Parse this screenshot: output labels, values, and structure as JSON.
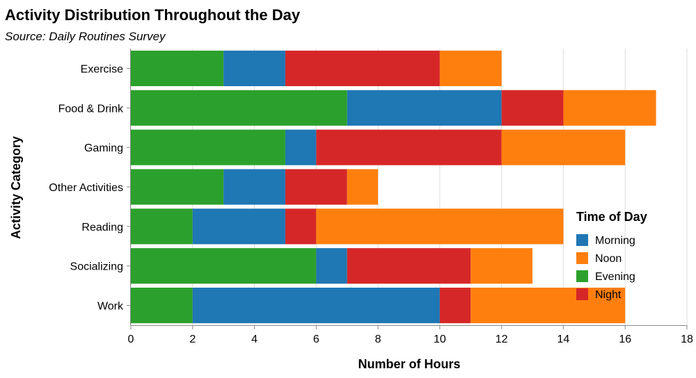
{
  "chart_data": {
    "type": "bar",
    "orientation": "horizontal",
    "stacked": true,
    "title": "Activity Distribution Throughout the Day",
    "subtitle": "Source: Daily Routines Survey",
    "xlabel": "Number of Hours",
    "ylabel": "Activity Category",
    "xlim": [
      0,
      18
    ],
    "xticks": [
      0,
      2,
      4,
      6,
      8,
      10,
      12,
      14,
      16,
      18
    ],
    "grid": true,
    "legend_title": "Time of Day",
    "legend_position": "bottom-right",
    "legend_order": [
      "Morning",
      "Noon",
      "Evening",
      "Night"
    ],
    "stack_order": [
      "Evening",
      "Morning",
      "Night",
      "Noon"
    ],
    "categories": [
      "Exercise",
      "Food & Drink",
      "Gaming",
      "Other Activities",
      "Reading",
      "Socializing",
      "Work"
    ],
    "series": [
      {
        "name": "Morning",
        "color": "#1f77b4",
        "values": [
          2,
          5,
          1,
          2,
          3,
          1,
          8
        ]
      },
      {
        "name": "Noon",
        "color": "#ff7f0e",
        "values": [
          2,
          3,
          4,
          1,
          8,
          2,
          5
        ]
      },
      {
        "name": "Evening",
        "color": "#2ca02c",
        "values": [
          3,
          7,
          5,
          3,
          2,
          6,
          2
        ]
      },
      {
        "name": "Night",
        "color": "#d62728",
        "values": [
          5,
          2,
          6,
          2,
          1,
          4,
          1
        ]
      }
    ]
  }
}
